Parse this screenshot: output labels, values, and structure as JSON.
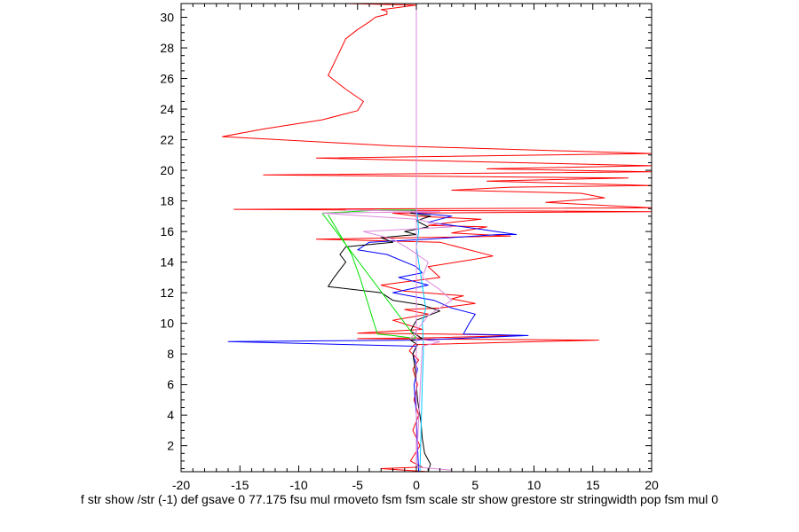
{
  "chart_data": {
    "type": "line",
    "title": "",
    "xlabel": "f str show /str (-1) def gsave 0 77.175 fsu mul rmoveto fsm fsm scale str show grestore str stringwidth pop fsm mul 0",
    "ylabel": "",
    "xlim": [
      -20,
      20
    ],
    "ylim": [
      0.3,
      30.9
    ],
    "x_ticks": [
      -20,
      -15,
      -10,
      -5,
      0,
      5,
      10,
      15,
      20
    ],
    "y_ticks": [
      2,
      4,
      6,
      8,
      10,
      12,
      14,
      16,
      18,
      20,
      22,
      24,
      26,
      28,
      30
    ],
    "grid": false,
    "legend": "none",
    "series": [
      {
        "color": "#ff0000",
        "points": [
          [
            1.0,
            0.3
          ],
          [
            -3.0,
            0.5
          ],
          [
            0.5,
            0.6
          ],
          [
            -0.5,
            1.0
          ],
          [
            0.3,
            2.0
          ],
          [
            -0.3,
            3.0
          ],
          [
            0.2,
            4.0
          ],
          [
            -0.2,
            5.0
          ],
          [
            0.1,
            6.0
          ],
          [
            -0.3,
            7.0
          ],
          [
            0.2,
            7.6
          ],
          [
            -0.6,
            8.2
          ],
          [
            -0.2,
            8.6
          ],
          [
            15.5,
            8.9
          ],
          [
            -5.0,
            9.0
          ],
          [
            1.0,
            9.05
          ],
          [
            9.0,
            9.2
          ],
          [
            2.0,
            9.3
          ],
          [
            -5.0,
            9.35
          ],
          [
            0.5,
            9.6
          ],
          [
            -2.0,
            10.2
          ],
          [
            1.0,
            10.6
          ],
          [
            -1.0,
            10.9
          ],
          [
            2.0,
            11.0
          ],
          [
            5.0,
            11.3
          ],
          [
            3.0,
            11.6
          ],
          [
            4.0,
            11.8
          ],
          [
            -1.0,
            12.1
          ],
          [
            -3.0,
            12.5
          ],
          [
            -1.0,
            12.7
          ],
          [
            2.0,
            13.0
          ],
          [
            1.0,
            13.7
          ],
          [
            5.0,
            14.2
          ],
          [
            6.5,
            14.4
          ],
          [
            2.0,
            15.3
          ],
          [
            -8.5,
            15.5
          ],
          [
            8.0,
            15.7
          ],
          [
            3.0,
            15.9
          ],
          [
            6.0,
            16.3
          ],
          [
            1.0,
            16.4
          ],
          [
            3.0,
            16.6
          ],
          [
            5.5,
            16.8
          ],
          [
            0.0,
            17.0
          ],
          [
            -2.0,
            17.2
          ],
          [
            20.0,
            17.3
          ],
          [
            -15.5,
            17.45
          ],
          [
            20.0,
            17.55
          ],
          [
            11.0,
            17.9
          ],
          [
            16.0,
            18.2
          ],
          [
            14.0,
            18.5
          ],
          [
            3.0,
            18.7
          ],
          [
            8.0,
            18.9
          ],
          [
            20.0,
            19.0
          ],
          [
            6.0,
            19.3
          ],
          [
            18.0,
            19.5
          ],
          [
            -13.0,
            19.7
          ],
          [
            20.0,
            19.9
          ],
          [
            6.0,
            20.1
          ],
          [
            20.0,
            20.3
          ],
          [
            -8.5,
            20.8
          ],
          [
            20.0,
            21.1
          ],
          [
            -2.0,
            21.6
          ],
          [
            -16.5,
            22.2
          ],
          [
            -13.0,
            22.7
          ],
          [
            -8.0,
            23.3
          ],
          [
            -5.0,
            23.9
          ],
          [
            -4.5,
            24.5
          ],
          [
            -6.0,
            25.3
          ],
          [
            -7.5,
            26.2
          ],
          [
            -7.0,
            27.0
          ],
          [
            -6.5,
            27.8
          ],
          [
            -6.0,
            28.6
          ],
          [
            -5.0,
            29.2
          ],
          [
            -4.0,
            29.7
          ],
          [
            -3.5,
            30.0
          ],
          [
            -2.5,
            30.2
          ],
          [
            -2.5,
            30.4
          ],
          [
            -3.0,
            30.5
          ],
          [
            -2.0,
            30.6
          ],
          [
            0.0,
            30.8
          ],
          [
            -6.0,
            30.9
          ]
        ]
      },
      {
        "color": "#0000ff",
        "points": [
          [
            0.2,
            0.3
          ],
          [
            0.1,
            2.0
          ],
          [
            0.0,
            4.0
          ],
          [
            -0.2,
            6.0
          ],
          [
            0.1,
            7.0
          ],
          [
            -0.3,
            8.0
          ],
          [
            0.0,
            8.5
          ],
          [
            -16.0,
            8.8
          ],
          [
            0.0,
            8.9
          ],
          [
            9.5,
            9.2
          ],
          [
            4.0,
            9.3
          ],
          [
            4.5,
            10.0
          ],
          [
            5.0,
            10.6
          ],
          [
            3.0,
            11.0
          ],
          [
            1.5,
            11.5
          ],
          [
            -2.0,
            12.0
          ],
          [
            1.0,
            12.5
          ],
          [
            -1.5,
            13.0
          ],
          [
            0.5,
            13.3
          ],
          [
            0.0,
            13.7
          ],
          [
            -2.5,
            14.5
          ],
          [
            -5.0,
            14.8
          ],
          [
            -4.0,
            15.3
          ],
          [
            1.0,
            15.5
          ],
          [
            7.0,
            15.8
          ],
          [
            8.5,
            15.8
          ],
          [
            5.0,
            16.2
          ],
          [
            1.0,
            16.6
          ],
          [
            3.0,
            17.0
          ],
          [
            0.0,
            17.2
          ],
          [
            -0.5,
            17.4
          ]
        ]
      },
      {
        "color": "#000000",
        "points": [
          [
            1.0,
            0.3
          ],
          [
            1.2,
            0.8
          ],
          [
            0.7,
            1.5
          ],
          [
            0.5,
            2.5
          ],
          [
            0.4,
            3.5
          ],
          [
            0.1,
            5.0
          ],
          [
            -0.1,
            7.0
          ],
          [
            -0.3,
            8.0
          ],
          [
            0.1,
            8.6
          ],
          [
            -0.5,
            8.9
          ],
          [
            0.5,
            9.0
          ],
          [
            -0.5,
            9.5
          ],
          [
            0.0,
            10.2
          ],
          [
            2.0,
            10.8
          ],
          [
            0.5,
            11.2
          ],
          [
            -2.0,
            11.5
          ],
          [
            -3.0,
            12.0
          ],
          [
            -7.5,
            12.4
          ],
          [
            -7.0,
            13.0
          ],
          [
            -6.5,
            13.5
          ],
          [
            -6.0,
            14.0
          ],
          [
            -6.5,
            14.5
          ],
          [
            -6.0,
            15.0
          ],
          [
            -2.0,
            15.3
          ],
          [
            -3.0,
            15.6
          ],
          [
            0.0,
            15.8
          ],
          [
            -1.0,
            16.0
          ],
          [
            1.0,
            16.3
          ],
          [
            0.0,
            16.7
          ],
          [
            1.2,
            17.0
          ],
          [
            -0.5,
            17.2
          ],
          [
            0.0,
            17.4
          ]
        ]
      },
      {
        "color": "#00e000",
        "points": [
          [
            -7.5,
            17.1
          ],
          [
            -6.5,
            15.8
          ],
          [
            -5.5,
            14.5
          ],
          [
            -4.8,
            13.0
          ],
          [
            -4.2,
            11.5
          ],
          [
            -3.6,
            10.0
          ],
          [
            -3.3,
            9.3
          ],
          [
            -2.0,
            9.2
          ],
          [
            0.0,
            9.0
          ],
          [
            -8.0,
            17.2
          ],
          [
            -3.0,
            17.4
          ],
          [
            0.0,
            17.4
          ]
        ]
      },
      {
        "color": "#00c8ff",
        "points": [
          [
            0.3,
            0.3
          ],
          [
            0.4,
            3.0
          ],
          [
            0.5,
            6.0
          ],
          [
            0.6,
            8.0
          ],
          [
            0.6,
            9.0
          ],
          [
            0.5,
            10.0
          ],
          [
            0.8,
            11.0
          ],
          [
            0.6,
            12.0
          ],
          [
            0.4,
            13.0
          ],
          [
            0.2,
            14.0
          ],
          [
            0.0,
            15.0
          ],
          [
            0.2,
            16.0
          ],
          [
            0.1,
            17.0
          ],
          [
            0.0,
            17.5
          ]
        ]
      },
      {
        "color": "#dd88dd",
        "points": [
          [
            0.0,
            0.3
          ],
          [
            0.0,
            30.9
          ]
        ]
      },
      {
        "color": "#dd88dd",
        "points": [
          [
            3.0,
            0.4
          ],
          [
            0.0,
            0.6
          ],
          [
            0.5,
            8.5
          ],
          [
            2.0,
            8.8
          ],
          [
            -0.5,
            9.0
          ],
          [
            1.0,
            10.5
          ],
          [
            3.0,
            11.5
          ],
          [
            2.0,
            12.2
          ],
          [
            0.5,
            13.0
          ],
          [
            1.0,
            14.0
          ],
          [
            -0.5,
            14.8
          ],
          [
            -2.0,
            15.5
          ],
          [
            -4.5,
            16.0
          ],
          [
            3.0,
            16.3
          ],
          [
            0.0,
            16.8
          ],
          [
            -8.0,
            17.2
          ],
          [
            2.0,
            17.3
          ],
          [
            -6.0,
            17.4
          ]
        ]
      }
    ]
  }
}
